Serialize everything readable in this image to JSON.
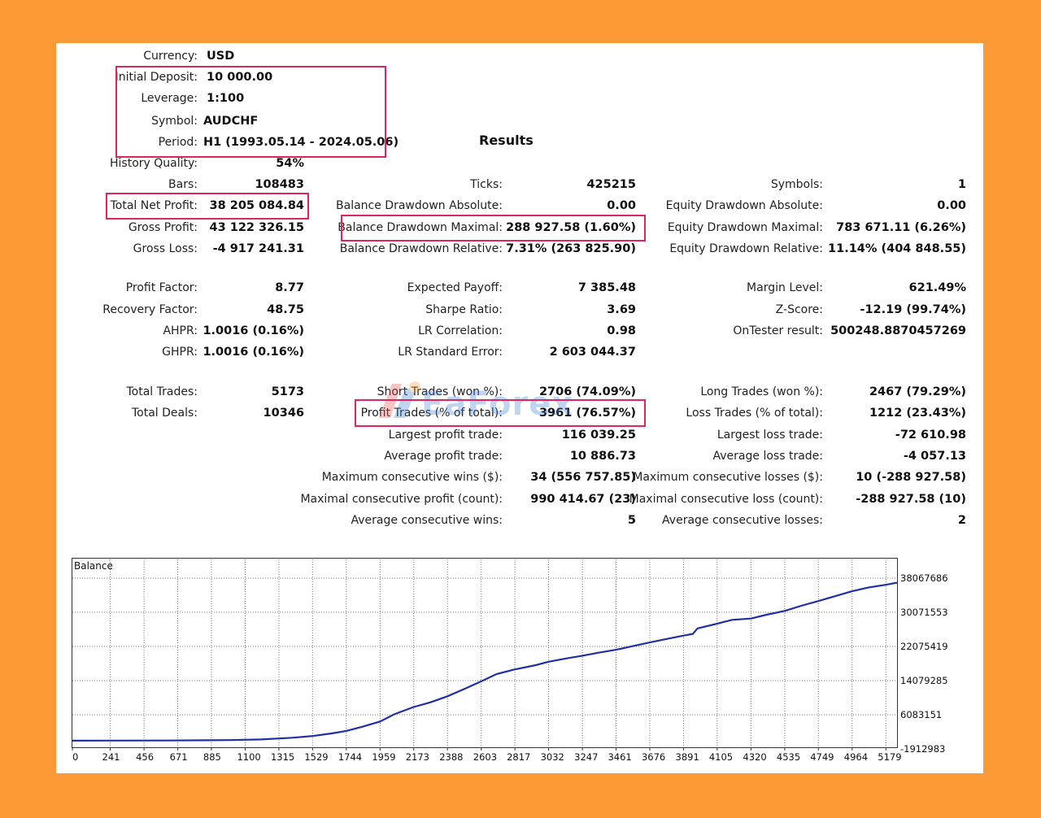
{
  "settings": {
    "rows": [
      {
        "label": "Currency:",
        "value": "USD"
      },
      {
        "label": "Initial Deposit:",
        "value": "10 000.00"
      },
      {
        "label": "Leverage:",
        "value": "1:100"
      },
      {
        "label": "Symbol:",
        "value": "AUDCHF"
      },
      {
        "label": "Period:",
        "value": "H1 (1993.05.14 - 2024.05.06)"
      }
    ]
  },
  "results": {
    "title": "Results",
    "col1": [
      {
        "label": "History Quality:",
        "value": "54%"
      },
      {
        "label": "Bars:",
        "value": "108483"
      },
      {
        "label": "Total Net Profit:",
        "value": "38 205 084.84"
      },
      {
        "label": "Gross Profit:",
        "value": "43 122 326.15"
      },
      {
        "label": "Gross Loss:",
        "value": "-4 917 241.31"
      },
      {
        "label": "Profit Factor:",
        "value": "8.77"
      },
      {
        "label": "Recovery Factor:",
        "value": "48.75"
      },
      {
        "label": "AHPR:",
        "value": "1.0016 (0.16%)"
      },
      {
        "label": "GHPR:",
        "value": "1.0016 (0.16%)"
      },
      {
        "label": "Total Trades:",
        "value": "5173"
      },
      {
        "label": "Total Deals:",
        "value": "10346"
      }
    ],
    "col2": [
      {
        "label": "Ticks:",
        "value": "425215"
      },
      {
        "label": "Balance Drawdown Absolute:",
        "value": "0.00"
      },
      {
        "label": "Balance Drawdown Maximal:",
        "value": "288 927.58 (1.60%)"
      },
      {
        "label": "Balance Drawdown Relative:",
        "value": "7.31% (263 825.90)"
      },
      {
        "label": "Expected Payoff:",
        "value": "7 385.48"
      },
      {
        "label": "Sharpe Ratio:",
        "value": "3.69"
      },
      {
        "label": "LR Correlation:",
        "value": "0.98"
      },
      {
        "label": "LR Standard Error:",
        "value": "2 603 044.37"
      },
      {
        "label": "Short Trades (won %):",
        "value": "2706 (74.09%)"
      },
      {
        "label": "Profit Trades (% of total):",
        "value": "3961 (76.57%)"
      },
      {
        "label": "Largest profit trade:",
        "value": "116 039.25"
      },
      {
        "label": "Average profit trade:",
        "value": "10 886.73"
      },
      {
        "label": "Maximum consecutive wins ($):",
        "value": "34 (556 757.85)"
      },
      {
        "label": "Maximal consecutive profit (count):",
        "value": "990 414.67 (23)"
      },
      {
        "label": "Average consecutive wins:",
        "value": "5"
      }
    ],
    "col3": [
      {
        "label": "Symbols:",
        "value": "1"
      },
      {
        "label": "Equity Drawdown Absolute:",
        "value": "0.00"
      },
      {
        "label": "Equity Drawdown Maximal:",
        "value": "783 671.11 (6.26%)"
      },
      {
        "label": "Equity Drawdown Relative:",
        "value": "11.14% (404 848.55)"
      },
      {
        "label": "Margin Level:",
        "value": "621.49%"
      },
      {
        "label": "Z-Score:",
        "value": "-12.19 (99.74%)"
      },
      {
        "label": "OnTester result:",
        "value": "500248.8870457269"
      },
      {
        "label": "Long Trades (won %):",
        "value": "2467 (79.29%)"
      },
      {
        "label": "Loss Trades (% of total):",
        "value": "1212 (23.43%)"
      },
      {
        "label": "Largest loss trade:",
        "value": "-72 610.98"
      },
      {
        "label": "Average loss trade:",
        "value": "-4 057.13"
      },
      {
        "label": "Maximum consecutive losses ($):",
        "value": "10 (-288 927.58)"
      },
      {
        "label": "Maximal consecutive loss (count):",
        "value": "-288 927.58 (10)"
      },
      {
        "label": "Average consecutive losses:",
        "value": "2"
      }
    ]
  },
  "watermark": {
    "text": "EaForex"
  },
  "colors": {
    "background": "#fd9a35",
    "highlight": "#e0245e",
    "balance_line": "#1f2fa6",
    "grid": "#7a7a7a"
  },
  "chart_data": {
    "type": "line",
    "title": "Balance",
    "x_ticks": [
      "0",
      "241",
      "456",
      "671",
      "885",
      "1100",
      "1315",
      "1529",
      "1744",
      "1959",
      "2173",
      "2388",
      "2603",
      "2817",
      "3032",
      "3247",
      "3461",
      "3676",
      "3891",
      "4105",
      "4320",
      "4535",
      "4749",
      "4964",
      "5179"
    ],
    "y_ticks": [
      "38067686",
      "30071553",
      "22075419",
      "14079285",
      "6083151",
      "-1912983"
    ],
    "ylim": [
      -1912983,
      38067686
    ],
    "xlim": [
      0,
      5250
    ],
    "grid": true,
    "series": [
      {
        "values": [
          [
            0,
            10000
          ],
          [
            200,
            20000
          ],
          [
            600,
            50000
          ],
          [
            1000,
            150000
          ],
          [
            1200,
            300000
          ],
          [
            1400,
            700000
          ],
          [
            1529,
            1100000
          ],
          [
            1650,
            1700000
          ],
          [
            1744,
            2300000
          ],
          [
            1850,
            3300000
          ],
          [
            1959,
            4500000
          ],
          [
            2050,
            6200000
          ],
          [
            2173,
            7900000
          ],
          [
            2280,
            9000000
          ],
          [
            2388,
            10400000
          ],
          [
            2500,
            12200000
          ],
          [
            2603,
            13900000
          ],
          [
            2700,
            15600000
          ],
          [
            2817,
            16700000
          ],
          [
            2950,
            17700000
          ],
          [
            3032,
            18500000
          ],
          [
            3150,
            19300000
          ],
          [
            3247,
            19900000
          ],
          [
            3350,
            20600000
          ],
          [
            3461,
            21300000
          ],
          [
            3560,
            22100000
          ],
          [
            3676,
            23000000
          ],
          [
            3780,
            23800000
          ],
          [
            3891,
            24600000
          ],
          [
            3950,
            25000000
          ],
          [
            3980,
            26300000
          ],
          [
            4105,
            27400000
          ],
          [
            4200,
            28300000
          ],
          [
            4320,
            28600000
          ],
          [
            4420,
            29500000
          ],
          [
            4535,
            30400000
          ],
          [
            4640,
            31600000
          ],
          [
            4749,
            32700000
          ],
          [
            4860,
            33900000
          ],
          [
            4964,
            35000000
          ],
          [
            5070,
            35900000
          ],
          [
            5179,
            36500000
          ],
          [
            5250,
            37000000
          ]
        ]
      }
    ]
  }
}
